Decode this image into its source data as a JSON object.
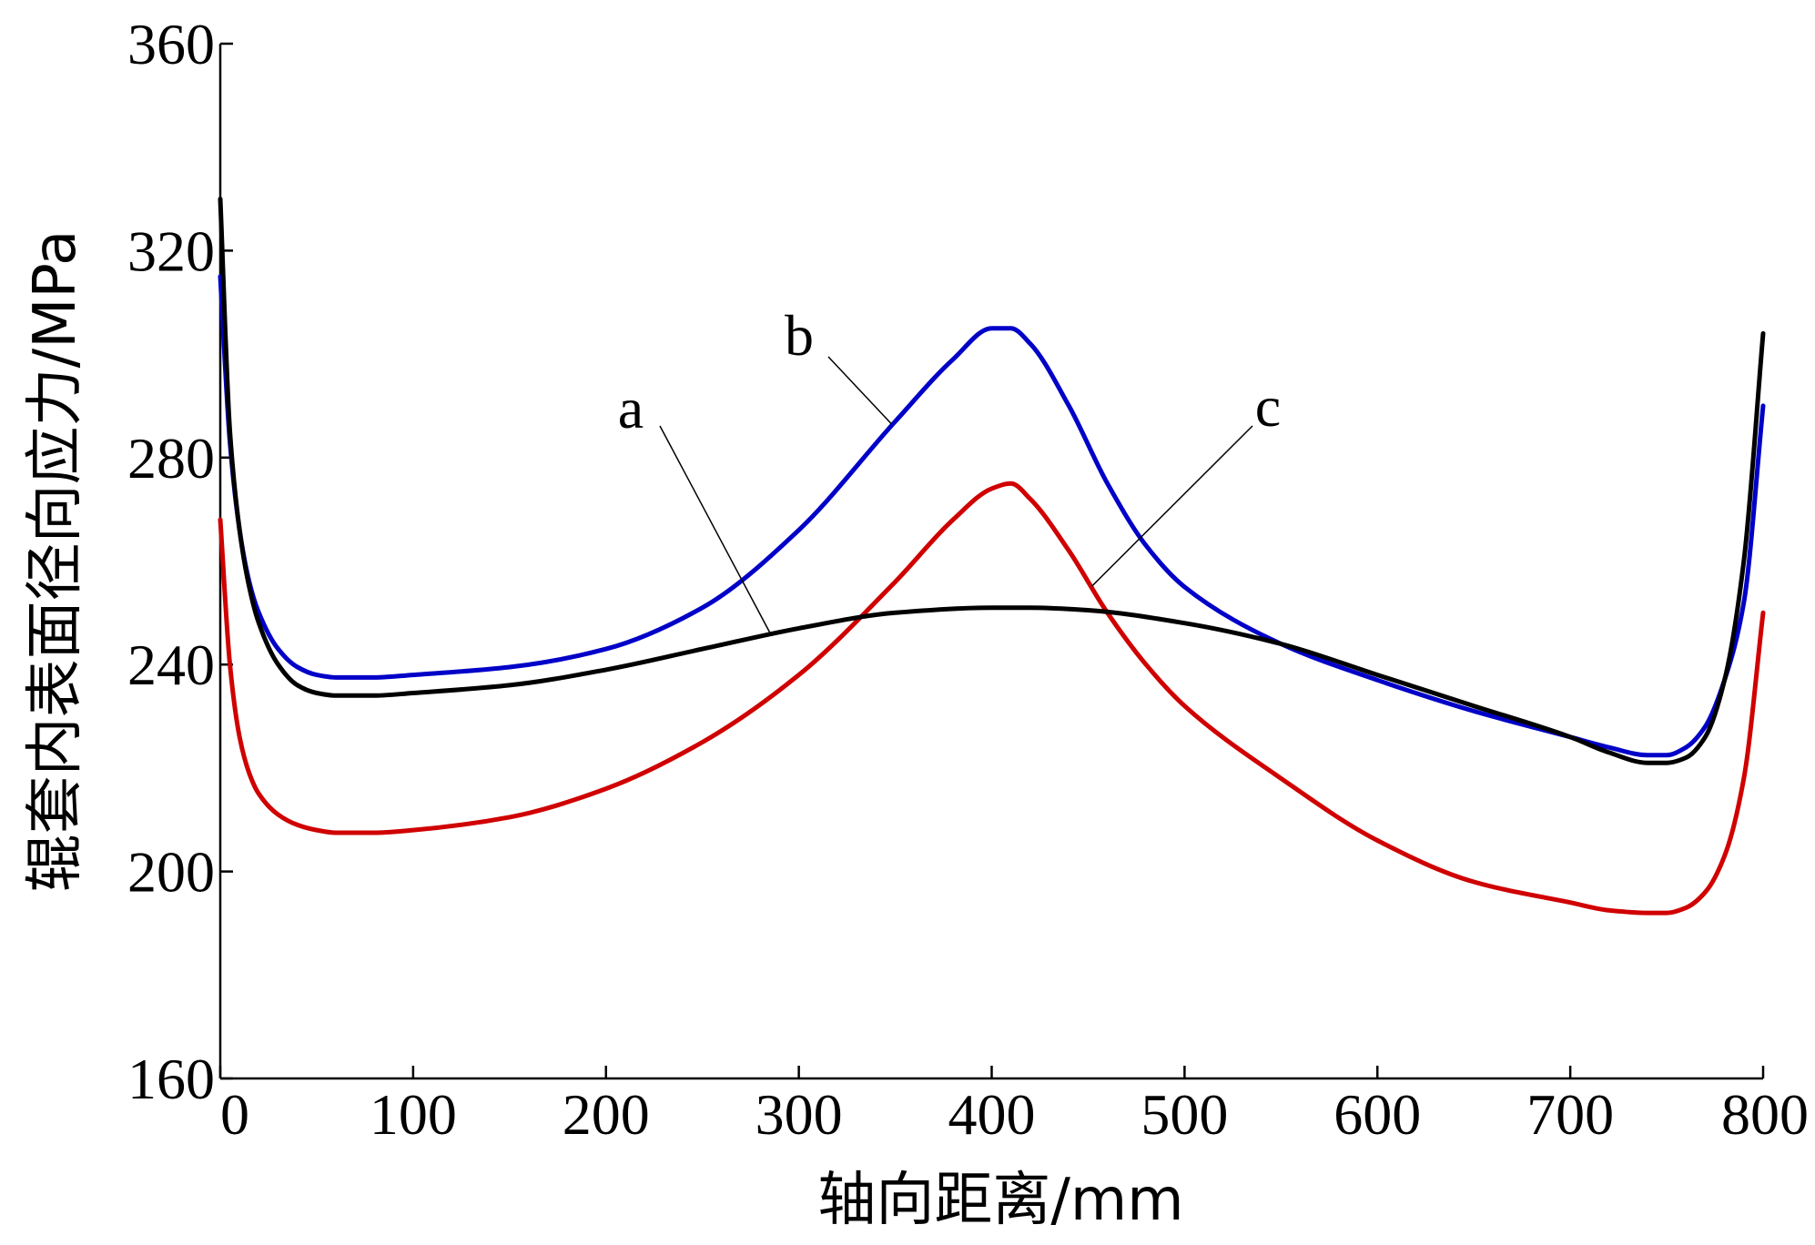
{
  "chart_data": {
    "type": "line",
    "title": "",
    "xlabel": "轴向距离/mm",
    "ylabel": "辊套内表面径向应力/MPa",
    "xlim": [
      0,
      800
    ],
    "ylim": [
      160,
      360
    ],
    "xticks": [
      0,
      100,
      200,
      300,
      400,
      500,
      600,
      700,
      800
    ],
    "yticks": [
      160,
      200,
      240,
      280,
      320,
      360
    ],
    "grid": false,
    "legend": "none",
    "series": [
      {
        "name": "a",
        "color": "#000000",
        "x": [
          0,
          5,
          10,
          15,
          20,
          30,
          40,
          50,
          60,
          80,
          100,
          150,
          200,
          250,
          300,
          350,
          400,
          420,
          450,
          500,
          550,
          600,
          650,
          700,
          720,
          740,
          750,
          760,
          770,
          780,
          790,
          800
        ],
        "y": [
          330,
          285,
          266,
          255,
          248,
          240,
          236,
          234.5,
          234,
          234,
          234.5,
          236,
          239,
          243,
          247,
          250,
          251,
          251,
          250.5,
          248,
          244,
          238,
          232,
          226,
          223,
          221,
          221,
          222,
          226,
          237,
          260,
          304
        ]
      },
      {
        "name": "b",
        "color": "#0000c8",
        "x": [
          0,
          5,
          10,
          15,
          20,
          30,
          40,
          50,
          60,
          80,
          100,
          150,
          200,
          250,
          300,
          350,
          380,
          400,
          410,
          420,
          440,
          460,
          480,
          500,
          550,
          600,
          650,
          700,
          720,
          740,
          750,
          760,
          770,
          780,
          790,
          800
        ],
        "y": [
          315,
          283,
          266,
          256,
          250,
          243,
          239.5,
          238,
          237.5,
          237.5,
          238,
          239.5,
          243,
          251,
          266,
          287,
          299,
          305,
          305,
          302,
          290,
          275,
          263,
          255,
          244,
          237,
          231,
          226,
          224,
          222.5,
          222.5,
          224,
          228,
          237,
          252,
          290
        ]
      },
      {
        "name": "c",
        "color": "#d00000",
        "x": [
          0,
          5,
          10,
          15,
          20,
          30,
          40,
          50,
          60,
          80,
          100,
          150,
          200,
          250,
          300,
          350,
          380,
          400,
          410,
          420,
          440,
          460,
          480,
          500,
          550,
          600,
          650,
          700,
          720,
          740,
          750,
          760,
          770,
          780,
          790,
          800
        ],
        "y": [
          268,
          240,
          226,
          219,
          215,
          211,
          209,
          208,
          207.5,
          207.5,
          208,
          210.5,
          216,
          225,
          238,
          256,
          268,
          274,
          275,
          272,
          262,
          250,
          240,
          232,
          218,
          206,
          198,
          194,
          192.5,
          192,
          192,
          193,
          196,
          203,
          218,
          250
        ]
      }
    ]
  }
}
